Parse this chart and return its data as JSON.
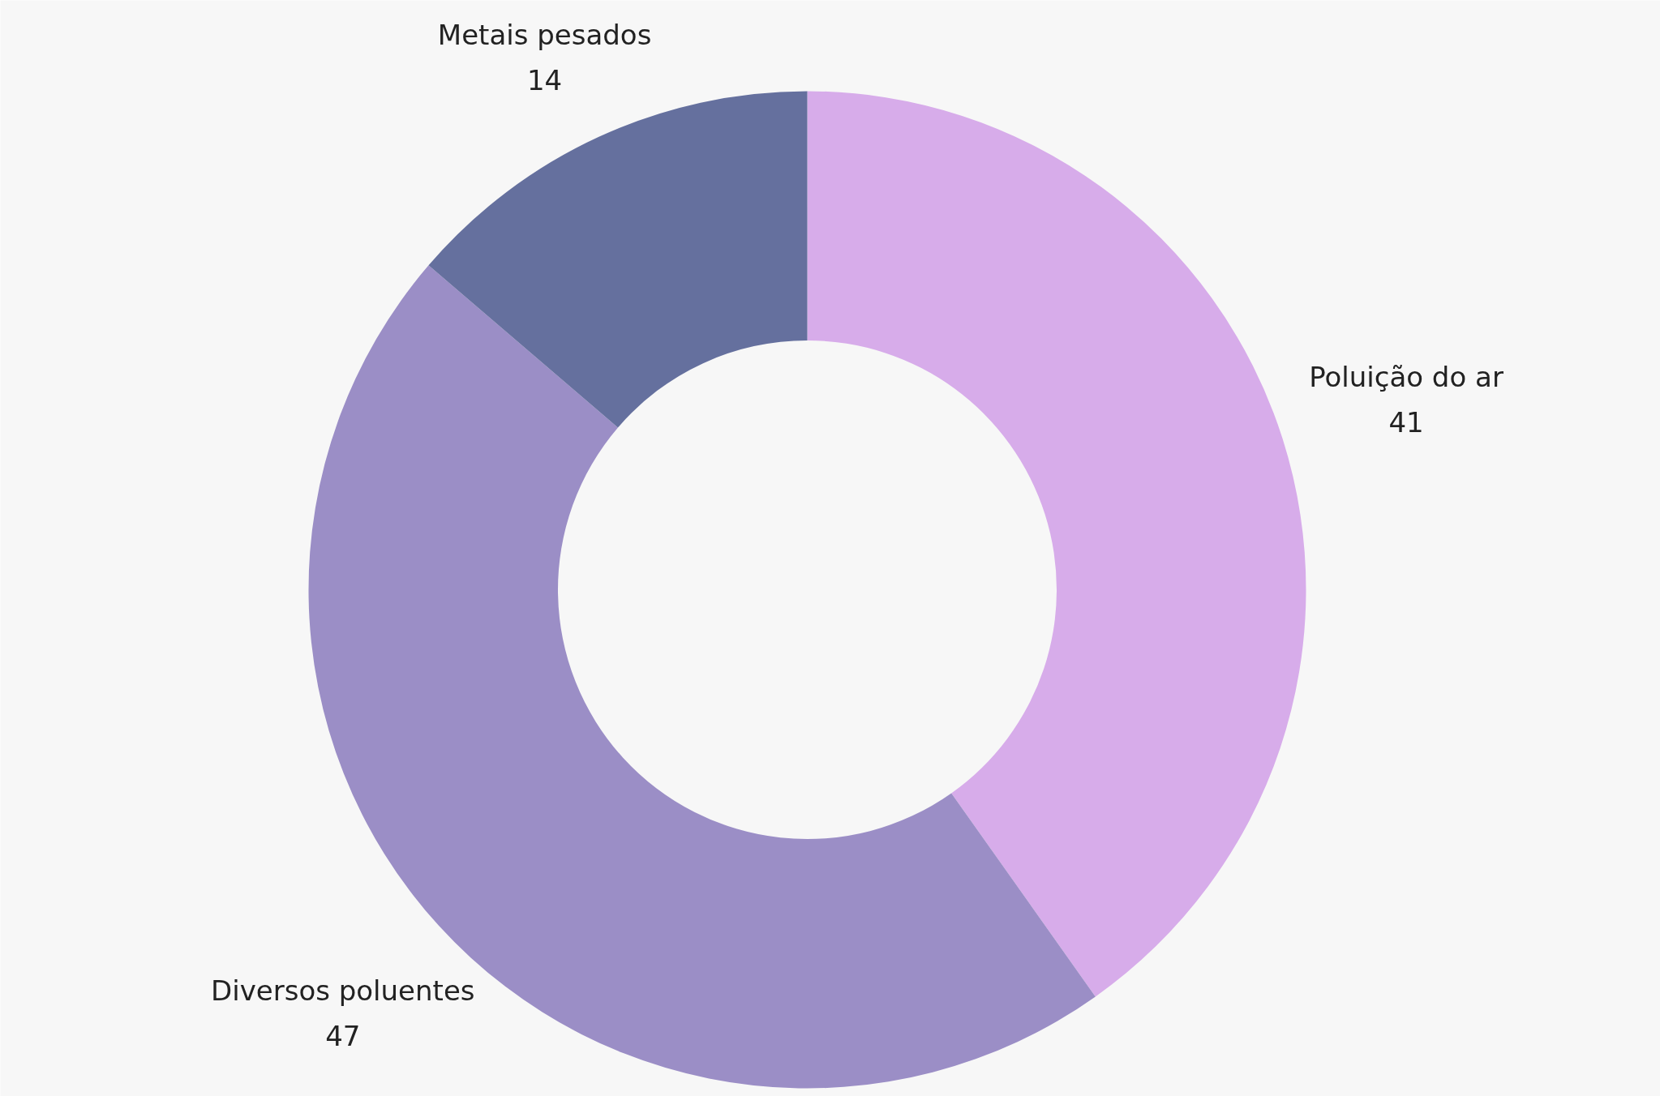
{
  "chart_data": {
    "type": "donut",
    "categories": [
      "Poluição do ar",
      "Diversos poluentes",
      "Metais pesados"
    ],
    "values": [
      41,
      47,
      14
    ],
    "colors": [
      "#d7acea",
      "#9b8ec6",
      "#65709e"
    ],
    "data_labels": true
  }
}
